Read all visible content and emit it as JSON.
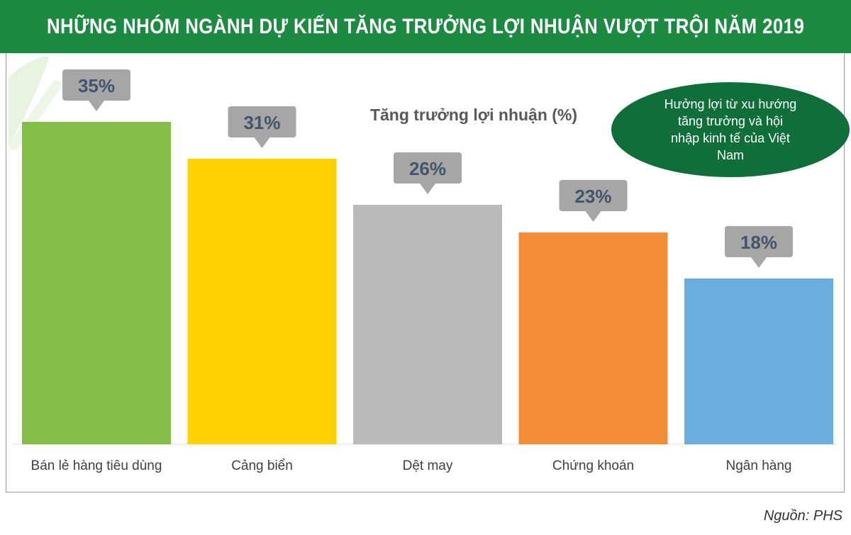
{
  "header": {
    "title": "NHỮNG NHÓM NGÀNH DỰ KIẾN TĂNG TRƯỞNG LỢI NHUẬN  VƯỢT TRỘI NĂM 2019"
  },
  "source": "Nguồn: PHS",
  "callout": {
    "lines": [
      "Hưởng lợi từ xu hướng",
      "tăng trưởng và hội",
      "nhập kinh tế của Việt",
      "Nam"
    ],
    "color": "#0f6e3a"
  },
  "chart_data": {
    "type": "bar",
    "title": "Tăng trưởng lợi nhuận (%)",
    "categories": [
      "Bán lẻ hàng tiêu dùng",
      "Cảng biển",
      "Dệt may",
      "Chứng khoán",
      "Ngân hàng"
    ],
    "values": [
      35,
      31,
      26,
      23,
      18
    ],
    "value_labels": [
      "35%",
      "31%",
      "26%",
      "23%",
      "18%"
    ],
    "colors": [
      "#84bd47",
      "#ffd100",
      "#bababa",
      "#f28c38",
      "#6aaee0"
    ],
    "ylim": [
      0,
      40
    ],
    "grid": false,
    "label_box_color": "#a6a6a6",
    "label_text_color": "#44546a"
  }
}
